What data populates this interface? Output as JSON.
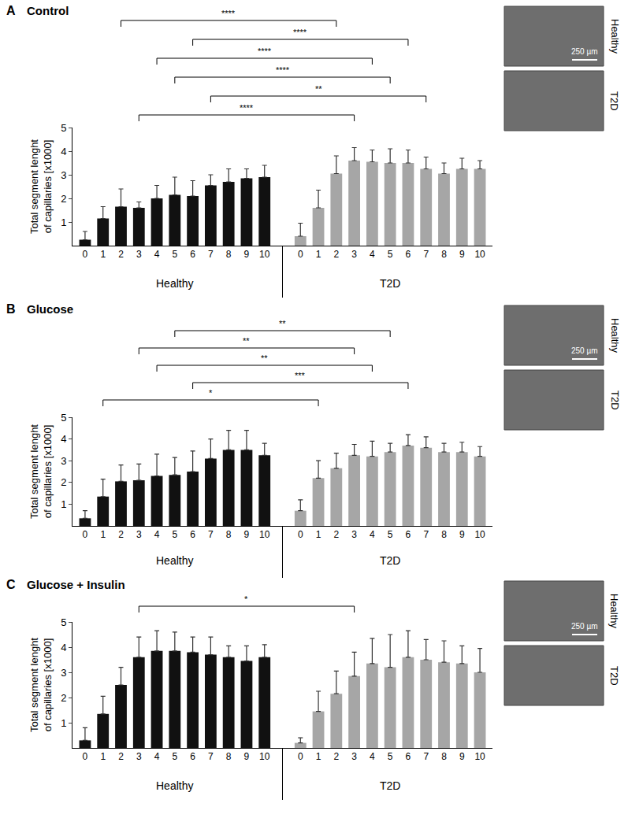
{
  "chart_data": [
    {
      "type": "bar",
      "panel": "A",
      "title": "Control",
      "y_label": "Total segment lenght of capillaries [x1000]",
      "categories": [
        "0",
        "1",
        "2",
        "3",
        "4",
        "5",
        "6",
        "7",
        "8",
        "9",
        "10"
      ],
      "series": [
        {
          "name": "Healthy",
          "color": "#111111",
          "values": [
            0.25,
            1.15,
            1.65,
            1.6,
            2.0,
            2.15,
            2.1,
            2.55,
            2.7,
            2.85,
            2.9
          ],
          "errors": [
            0.35,
            0.5,
            0.75,
            0.25,
            0.55,
            0.75,
            0.65,
            0.45,
            0.55,
            0.4,
            0.5
          ]
        },
        {
          "name": "T2D",
          "color": "#a6a6a6",
          "values": [
            0.4,
            1.6,
            3.05,
            3.6,
            3.55,
            3.5,
            3.5,
            3.25,
            3.05,
            3.25,
            3.25
          ],
          "errors": [
            0.55,
            0.75,
            0.75,
            0.55,
            0.5,
            0.6,
            0.55,
            0.5,
            0.45,
            0.45,
            0.35
          ]
        }
      ],
      "comparisons": [
        {
          "healthy": "2",
          "t2d": "2",
          "label": "****"
        },
        {
          "healthy": "6",
          "t2d": "6",
          "label": "****"
        },
        {
          "healthy": "4",
          "t2d": "4",
          "label": "****"
        },
        {
          "healthy": "5",
          "t2d": "5",
          "label": "****"
        },
        {
          "healthy": "7",
          "t2d": "7",
          "label": "**"
        },
        {
          "healthy": "3",
          "t2d": "3",
          "label": "****"
        }
      ],
      "ylim": [
        0,
        5
      ],
      "yticks": [
        1,
        2,
        3,
        4,
        5
      ],
      "grid": false,
      "image_labels": [
        "Healthy",
        "T2D"
      ],
      "scale_bar": "250 µm"
    },
    {
      "type": "bar",
      "panel": "B",
      "title": "Glucose",
      "y_label": "Total segment lenght of capillaries [x1000]",
      "categories": [
        "0",
        "1",
        "2",
        "3",
        "4",
        "5",
        "6",
        "7",
        "8",
        "9",
        "10"
      ],
      "series": [
        {
          "name": "Healthy",
          "color": "#111111",
          "values": [
            0.35,
            1.35,
            2.05,
            2.1,
            2.3,
            2.35,
            2.5,
            3.1,
            3.5,
            3.5,
            3.25
          ],
          "errors": [
            0.35,
            0.8,
            0.75,
            0.75,
            1.0,
            0.8,
            0.95,
            0.9,
            0.9,
            0.9,
            0.55
          ]
        },
        {
          "name": "T2D",
          "color": "#a6a6a6",
          "values": [
            0.7,
            2.2,
            2.65,
            3.25,
            3.2,
            3.4,
            3.7,
            3.6,
            3.4,
            3.4,
            3.2
          ],
          "errors": [
            0.5,
            0.8,
            0.7,
            0.5,
            0.7,
            0.4,
            0.5,
            0.5,
            0.4,
            0.45,
            0.45
          ]
        }
      ],
      "comparisons": [
        {
          "healthy": "5",
          "t2d": "5",
          "label": "**"
        },
        {
          "healthy": "3",
          "t2d": "3",
          "label": "**"
        },
        {
          "healthy": "4",
          "t2d": "4",
          "label": "**"
        },
        {
          "healthy": "6",
          "t2d": "6",
          "label": "***"
        },
        {
          "healthy": "1",
          "t2d": "1",
          "label": "*"
        }
      ],
      "ylim": [
        0,
        5
      ],
      "yticks": [
        1,
        2,
        3,
        4,
        5
      ],
      "grid": false,
      "image_labels": [
        "Healthy",
        "T2D"
      ],
      "scale_bar": "250 µm"
    },
    {
      "type": "bar",
      "panel": "C",
      "title": "Glucose + Insulin",
      "y_label": "Total segment lenght of capillaries [x1000]",
      "categories": [
        "0",
        "1",
        "2",
        "3",
        "4",
        "5",
        "6",
        "7",
        "8",
        "9",
        "10"
      ],
      "series": [
        {
          "name": "Healthy",
          "color": "#111111",
          "values": [
            0.3,
            1.35,
            2.5,
            3.6,
            3.85,
            3.85,
            3.8,
            3.7,
            3.6,
            3.45,
            3.6
          ],
          "errors": [
            0.5,
            0.7,
            0.7,
            0.8,
            0.8,
            0.75,
            0.6,
            0.7,
            0.45,
            0.6,
            0.5
          ]
        },
        {
          "name": "T2D",
          "color": "#a6a6a6",
          "values": [
            0.2,
            1.45,
            2.15,
            2.85,
            3.35,
            3.2,
            3.6,
            3.5,
            3.4,
            3.35,
            3.0
          ],
          "errors": [
            0.2,
            0.8,
            0.9,
            0.95,
            1.0,
            1.3,
            1.05,
            0.8,
            0.85,
            0.7,
            0.95
          ]
        }
      ],
      "comparisons": [
        {
          "healthy": "3",
          "t2d": "3",
          "label": "*"
        }
      ],
      "ylim": [
        0,
        5
      ],
      "yticks": [
        1,
        2,
        3,
        4,
        5
      ],
      "grid": false,
      "image_labels": [
        "Healthy",
        "T2D"
      ],
      "scale_bar": "250 µm"
    }
  ]
}
